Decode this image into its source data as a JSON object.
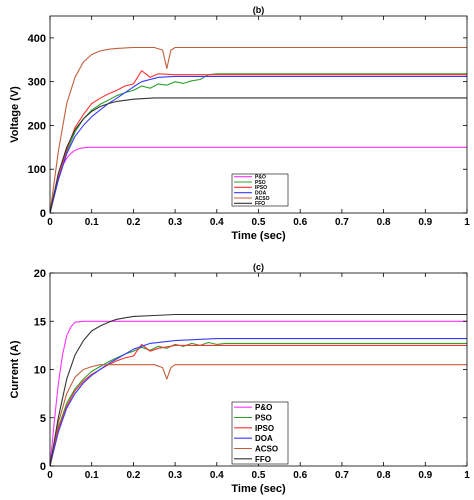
{
  "chart_data": [
    {
      "type": "line",
      "title": "(b)",
      "xlabel": "Time (sec)",
      "ylabel": "Voltage (V)",
      "xlim": [
        0,
        1
      ],
      "ylim": [
        0,
        450
      ],
      "xticks": [
        0,
        0.1,
        0.2,
        0.3,
        0.4,
        0.5,
        0.6,
        0.7,
        0.8,
        0.9,
        1
      ],
      "xtick_labels": [
        "0",
        "0.1",
        "0.2",
        "0.3",
        "0.4",
        "0.5",
        "0.6",
        "0.7",
        "0.8",
        "0.9",
        "1"
      ],
      "yticks": [
        0,
        100,
        200,
        300,
        400
      ],
      "ytick_labels": [
        "0",
        "100",
        "200",
        "300",
        "400"
      ],
      "grid": false,
      "legend_position": "bottom-center",
      "series": [
        {
          "name": "P&O",
          "color": "#ff33ff",
          "x": [
            0,
            0.01,
            0.02,
            0.03,
            0.04,
            0.05,
            0.06,
            0.07,
            0.08,
            0.09,
            0.1,
            1
          ],
          "y": [
            0,
            45,
            82,
            108,
            125,
            136,
            143,
            147,
            149,
            150,
            150,
            150
          ]
        },
        {
          "name": "PSO",
          "color": "#2ca02c",
          "x": [
            0,
            0.02,
            0.04,
            0.06,
            0.08,
            0.1,
            0.12,
            0.14,
            0.16,
            0.18,
            0.2,
            0.22,
            0.24,
            0.26,
            0.28,
            0.3,
            0.32,
            0.34,
            0.36,
            0.38,
            0.4,
            1
          ],
          "y": [
            0,
            80,
            140,
            185,
            215,
            235,
            248,
            258,
            268,
            275,
            280,
            290,
            285,
            295,
            292,
            300,
            296,
            302,
            305,
            316,
            318,
            318
          ]
        },
        {
          "name": "IPSO",
          "color": "#ff3333",
          "x": [
            0,
            0.02,
            0.04,
            0.06,
            0.08,
            0.1,
            0.12,
            0.14,
            0.16,
            0.18,
            0.2,
            0.22,
            0.24,
            0.26,
            0.3,
            1
          ],
          "y": [
            0,
            80,
            145,
            195,
            225,
            250,
            262,
            272,
            280,
            290,
            295,
            325,
            310,
            318,
            316,
            316
          ]
        },
        {
          "name": "DOA",
          "color": "#3a3aff",
          "x": [
            0,
            0.02,
            0.04,
            0.06,
            0.08,
            0.1,
            0.12,
            0.14,
            0.16,
            0.18,
            0.2,
            0.22,
            0.26,
            0.3,
            1
          ],
          "y": [
            0,
            75,
            135,
            175,
            200,
            220,
            235,
            250,
            262,
            275,
            288,
            300,
            310,
            312,
            312
          ]
        },
        {
          "name": "ACSO",
          "color": "#c0603a",
          "x": [
            0,
            0.02,
            0.04,
            0.06,
            0.08,
            0.1,
            0.12,
            0.14,
            0.16,
            0.2,
            0.25,
            0.27,
            0.28,
            0.29,
            0.3,
            1
          ],
          "y": [
            0,
            140,
            250,
            310,
            345,
            362,
            370,
            374,
            376,
            378,
            378,
            372,
            330,
            372,
            378,
            378
          ]
        },
        {
          "name": "FFO",
          "color": "#333333",
          "x": [
            0,
            0.02,
            0.04,
            0.06,
            0.08,
            0.1,
            0.12,
            0.14,
            0.16,
            0.2,
            0.25,
            0.3,
            1
          ],
          "y": [
            0,
            90,
            150,
            190,
            215,
            232,
            243,
            250,
            255,
            260,
            263,
            263,
            263
          ]
        }
      ]
    },
    {
      "type": "line",
      "title": "(c)",
      "xlabel": "Time (sec)",
      "ylabel": "Current (A)",
      "xlim": [
        0,
        1
      ],
      "ylim": [
        0,
        20
      ],
      "xticks": [
        0,
        0.1,
        0.2,
        0.3,
        0.4,
        0.5,
        0.6,
        0.7,
        0.8,
        0.9,
        1
      ],
      "xtick_labels": [
        "0",
        "0.1",
        "0.2",
        "0.3",
        "0.4",
        "0.5",
        "0.6",
        "0.7",
        "0.8",
        "0.9",
        "1"
      ],
      "yticks": [
        0,
        5,
        10,
        15,
        20
      ],
      "ytick_labels": [
        "0",
        "5",
        "10",
        "15",
        "20"
      ],
      "grid": false,
      "legend_position": "bottom-center",
      "series": [
        {
          "name": "P&O",
          "color": "#ff33ff",
          "x": [
            0,
            0.01,
            0.02,
            0.03,
            0.04,
            0.05,
            0.06,
            0.08,
            0.1,
            1
          ],
          "y": [
            0,
            4.5,
            8.5,
            11.5,
            13.5,
            14.4,
            14.9,
            15.0,
            15.0,
            15.0
          ]
        },
        {
          "name": "PSO",
          "color": "#2ca02c",
          "x": [
            0,
            0.02,
            0.04,
            0.06,
            0.08,
            0.1,
            0.12,
            0.14,
            0.16,
            0.18,
            0.2,
            0.22,
            0.24,
            0.26,
            0.28,
            0.3,
            0.32,
            0.34,
            0.36,
            0.38,
            0.4,
            0.42,
            1
          ],
          "y": [
            0,
            4.0,
            6.5,
            8.0,
            9.0,
            9.8,
            10.3,
            10.8,
            11.2,
            11.6,
            11.9,
            12.3,
            12.0,
            12.4,
            12.2,
            12.6,
            12.4,
            12.7,
            12.5,
            12.8,
            12.6,
            12.7,
            12.7
          ]
        },
        {
          "name": "IPSO",
          "color": "#ff3333",
          "x": [
            0,
            0.02,
            0.04,
            0.06,
            0.08,
            0.1,
            0.12,
            0.14,
            0.16,
            0.18,
            0.2,
            0.22,
            0.24,
            0.26,
            0.3,
            1
          ],
          "y": [
            0,
            3.8,
            6.2,
            7.8,
            8.8,
            9.5,
            10.0,
            10.5,
            10.9,
            11.2,
            11.4,
            12.6,
            11.9,
            12.2,
            12.5,
            12.5
          ]
        },
        {
          "name": "DOA",
          "color": "#3a3aff",
          "x": [
            0,
            0.02,
            0.04,
            0.06,
            0.08,
            0.1,
            0.12,
            0.14,
            0.16,
            0.18,
            0.2,
            0.24,
            0.3,
            0.4,
            1
          ],
          "y": [
            0,
            3.5,
            6.0,
            7.5,
            8.6,
            9.4,
            10.0,
            10.6,
            11.1,
            11.6,
            12.1,
            12.7,
            13.0,
            13.2,
            13.2
          ]
        },
        {
          "name": "ACSO",
          "color": "#c0603a",
          "x": [
            0,
            0.02,
            0.04,
            0.06,
            0.08,
            0.1,
            0.12,
            0.14,
            0.2,
            0.25,
            0.27,
            0.28,
            0.29,
            0.3,
            1
          ],
          "y": [
            0,
            4.5,
            7.5,
            9.2,
            10.0,
            10.3,
            10.5,
            10.5,
            10.5,
            10.5,
            10.2,
            9.0,
            10.2,
            10.5,
            10.5
          ]
        },
        {
          "name": "FFO",
          "color": "#333333",
          "x": [
            0,
            0.02,
            0.04,
            0.06,
            0.08,
            0.1,
            0.12,
            0.14,
            0.16,
            0.2,
            0.25,
            0.3,
            0.4,
            1
          ],
          "y": [
            0,
            5.0,
            9.0,
            11.5,
            13.0,
            14.0,
            14.5,
            14.9,
            15.2,
            15.5,
            15.6,
            15.7,
            15.7,
            15.7
          ]
        }
      ]
    }
  ]
}
